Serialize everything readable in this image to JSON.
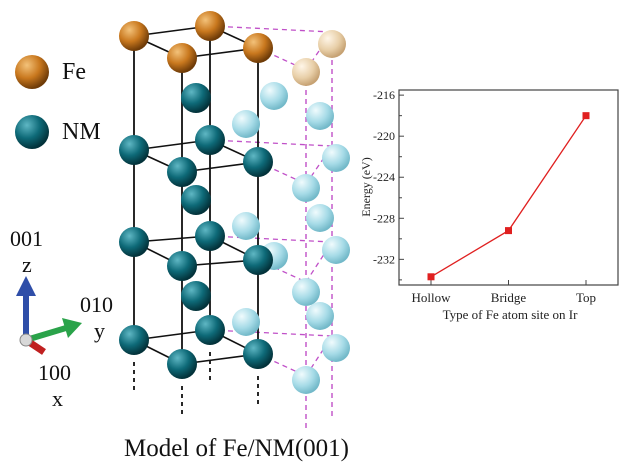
{
  "legend": {
    "fe_label": "Fe",
    "nm_label": "NM"
  },
  "axes_labels": {
    "z_index": "001",
    "z": "z",
    "y_index": "010",
    "y": "y",
    "x_index": "100",
    "x": "x"
  },
  "caption": "Model of Fe/NM(001)",
  "colors": {
    "fe_atom": "#c9781e",
    "nm_atom": "#0e6a78",
    "ghost_fe_atom": "#e8cfa8",
    "ghost_nm_atom": "#a6dbe7",
    "bond_dashed": "#c050c8",
    "z_arrow": "#2f4ea8",
    "y_arrow": "#2aa34a",
    "x_arrow": "#c02020",
    "series": "#e02020"
  },
  "chart_data": {
    "type": "line",
    "categories": [
      "Hollow",
      "Bridge",
      "Top"
    ],
    "values": [
      -233.7,
      -229.2,
      -218.0
    ],
    "xlabel": "Type of Fe atom site on Ir",
    "ylabel": "Energy (eV)",
    "ylim": [
      -234.5,
      -215.5
    ],
    "yticks": [
      "-216",
      "-220",
      "-224",
      "-228",
      "-232"
    ],
    "ytick_values": [
      -216,
      -220,
      -224,
      -228,
      -232
    ],
    "grid": false,
    "marker": "square"
  }
}
